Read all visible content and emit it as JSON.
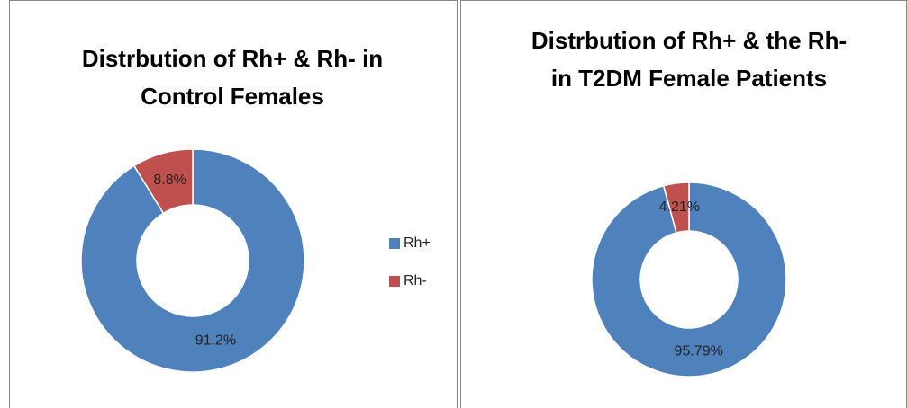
{
  "chart_data": [
    {
      "type": "donut",
      "title": "Distrbution of Rh+ & Rh- in Control Females",
      "categories": [
        "Rh+",
        "Rh-"
      ],
      "values": [
        91.2,
        8.8
      ],
      "value_labels": [
        "91.2%",
        "8.8%"
      ],
      "colors": [
        "#4f81bd",
        "#c0504d"
      ],
      "legend": true
    },
    {
      "type": "donut",
      "title": "Distrbution of Rh+ & the Rh- in T2DM Female Patients",
      "categories": [
        "Rh+",
        "Rh-"
      ],
      "values": [
        95.79,
        4.21
      ],
      "value_labels": [
        "95.79%",
        "4.21%"
      ],
      "colors": [
        "#4f81bd",
        "#c0504d"
      ],
      "legend": false
    }
  ]
}
